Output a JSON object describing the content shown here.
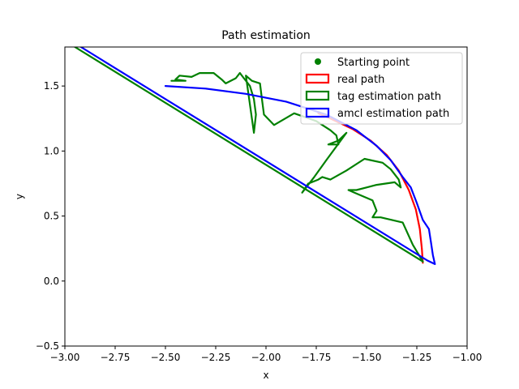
{
  "chart_data": {
    "type": "line",
    "title": "Path estimation",
    "xlabel": "x",
    "ylabel": "y",
    "xlim": [
      -3.0,
      -1.0
    ],
    "ylim": [
      -0.5,
      1.8
    ],
    "grid": false,
    "legend_position": "upper right",
    "x_ticks": [
      "-3.00",
      "-2.75",
      "-2.50",
      "-2.25",
      "-2.00",
      "-1.75",
      "-1.50",
      "-1.25",
      "-1.00"
    ],
    "y_ticks": [
      "-0.5",
      "0.0",
      "0.5",
      "1.0",
      "1.5"
    ],
    "legend": [
      {
        "label": "Starting point",
        "marker": "dot",
        "color": "#008000"
      },
      {
        "label": "real path",
        "marker": "patch",
        "color": "#ff0000"
      },
      {
        "label": "tag estimation path",
        "marker": "patch",
        "color": "#008000"
      },
      {
        "label": "amcl estimation path",
        "marker": "patch",
        "color": "#0000ff"
      }
    ],
    "series": [
      {
        "name": "real path",
        "color": "#ff0000",
        "points": [
          [
            -1.22,
            0.14
          ],
          [
            -1.225,
            0.25
          ],
          [
            -1.235,
            0.4
          ],
          [
            -1.255,
            0.55
          ],
          [
            -1.29,
            0.7
          ],
          [
            -1.34,
            0.85
          ],
          [
            -1.4,
            0.97
          ],
          [
            -1.48,
            1.08
          ],
          [
            -1.57,
            1.17
          ],
          [
            -1.68,
            1.25
          ],
          [
            -1.74,
            1.29
          ]
        ]
      },
      {
        "name": "tag estimation path",
        "color": "#008000",
        "points": [
          [
            -1.22,
            0.15
          ],
          [
            -1.27,
            0.28
          ],
          [
            -1.32,
            0.45
          ],
          [
            -1.43,
            0.49
          ],
          [
            -1.47,
            0.49
          ],
          [
            -1.45,
            0.54
          ],
          [
            -1.47,
            0.62
          ],
          [
            -1.56,
            0.68
          ],
          [
            -1.59,
            0.7
          ],
          [
            -1.55,
            0.7
          ],
          [
            -1.5,
            0.72
          ],
          [
            -1.45,
            0.74
          ],
          [
            -1.36,
            0.76
          ],
          [
            -1.33,
            0.72
          ],
          [
            -1.34,
            0.78
          ],
          [
            -1.38,
            0.86
          ],
          [
            -1.42,
            0.91
          ],
          [
            -1.51,
            0.94
          ],
          [
            -1.6,
            0.85
          ],
          [
            -1.68,
            0.78
          ],
          [
            -1.72,
            0.8
          ],
          [
            -1.74,
            0.78
          ],
          [
            -1.79,
            0.75
          ],
          [
            -1.82,
            0.68
          ],
          [
            -1.76,
            0.8
          ],
          [
            -1.7,
            0.93
          ],
          [
            -1.6,
            1.14
          ],
          [
            -1.64,
            1.08
          ],
          [
            -1.69,
            1.05
          ],
          [
            -1.64,
            1.05
          ],
          [
            -1.65,
            1.12
          ],
          [
            -1.68,
            1.16
          ],
          [
            -1.75,
            1.23
          ],
          [
            -1.86,
            1.29
          ],
          [
            -1.96,
            1.2
          ],
          [
            -2.01,
            1.28
          ],
          [
            -2.02,
            1.4
          ],
          [
            -2.03,
            1.52
          ],
          [
            -2.07,
            1.54
          ],
          [
            -2.1,
            1.58
          ],
          [
            -2.06,
            1.14
          ],
          [
            -2.05,
            1.28
          ],
          [
            -2.06,
            1.4
          ],
          [
            -2.08,
            1.5
          ],
          [
            -2.11,
            1.56
          ],
          [
            -2.13,
            1.6
          ],
          [
            -2.15,
            1.56
          ],
          [
            -2.2,
            1.52
          ],
          [
            -2.22,
            1.55
          ],
          [
            -2.26,
            1.6
          ],
          [
            -2.33,
            1.6
          ],
          [
            -2.37,
            1.57
          ],
          [
            -2.43,
            1.58
          ],
          [
            -2.45,
            1.55
          ],
          [
            -2.4,
            1.54
          ],
          [
            -2.47,
            1.54
          ]
        ]
      },
      {
        "name": "tag estimation path",
        "color": "#008000",
        "points": [
          [
            -1.22,
            0.15
          ],
          [
            -2.95,
            1.8
          ]
        ]
      },
      {
        "name": "amcl estimation path",
        "color": "#0000ff",
        "points": [
          [
            -2.5,
            1.5
          ],
          [
            -2.3,
            1.48
          ],
          [
            -2.1,
            1.44
          ],
          [
            -1.9,
            1.38
          ],
          [
            -1.7,
            1.28
          ],
          [
            -1.55,
            1.16
          ],
          [
            -1.45,
            1.04
          ],
          [
            -1.38,
            0.93
          ],
          [
            -1.32,
            0.8
          ],
          [
            -1.28,
            0.72
          ],
          [
            -1.25,
            0.6
          ],
          [
            -1.22,
            0.47
          ],
          [
            -1.19,
            0.4
          ],
          [
            -1.18,
            0.3
          ],
          [
            -1.17,
            0.2
          ],
          [
            -1.16,
            0.13
          ],
          [
            -1.2,
            0.16
          ],
          [
            -2.92,
            1.8
          ]
        ]
      }
    ],
    "starting_point": {
      "x": -2.5,
      "y": 1.5,
      "color": "#008000"
    }
  }
}
